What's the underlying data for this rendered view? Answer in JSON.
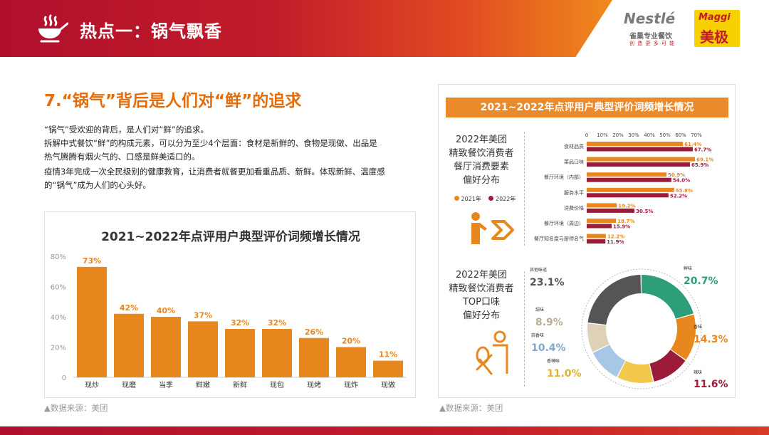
{
  "header": {
    "title": "热点一：锅气飘香",
    "nestle_logo": "Nestlé",
    "nestle_sub": "雀巢专业餐饮",
    "nestle_slogan": "创 造 更 多 可 能",
    "maggi_logo": "Maggi",
    "maggi_cn": "美极",
    "colors": {
      "banner_start": "#b0102c",
      "banner_end": "#f08a1c"
    }
  },
  "heading": "7.“锅气”背后是人们对“鲜”的追求",
  "paragraphs": [
    "“锅气”受欢迎的背后，是人们对“鲜”的追求。",
    "拆解中式餐饮“鲜”的构成元素，可以分为至少4个层面：食材是新鲜的、食物是现做、出品是",
    "热气腾腾有烟火气的、口感是鲜美适口的。",
    "疫情3年完成一次全民级别的健康教育，让消费者就餐更加看重品质、新鲜。体现新鲜、温度感",
    "的“锅气”成为人们的心头好。"
  ],
  "source_left": "▲数据来源：美团",
  "source_right": "▲数据来源：美团",
  "chart_data": [
    {
      "type": "bar",
      "title": "2021~2022年点评用户典型评价词频增长情况",
      "categories": [
        "现炒",
        "现磨",
        "当季",
        "鲜嫩",
        "新鲜",
        "现包",
        "现烤",
        "现炸",
        "现做"
      ],
      "values": [
        73,
        42,
        40,
        37,
        32,
        32,
        26,
        20,
        11
      ],
      "value_labels": [
        "73%",
        "42%",
        "40%",
        "37%",
        "32%",
        "32%",
        "26%",
        "20%",
        "11%"
      ],
      "yticks": [
        "0",
        "20%",
        "40%",
        "60%",
        "80%"
      ],
      "ylim": [
        0,
        80
      ],
      "color": "#e8871e"
    },
    {
      "type": "bar",
      "orientation": "horizontal",
      "categories": [
        "食材品质",
        "菜品口味",
        "餐厅环境（内部）",
        "服务水平",
        "消费价格",
        "餐厅环境（周边）",
        "餐厅知名度与厨师名气"
      ],
      "series": [
        {
          "name": "2021年",
          "values": [
            61.4,
            69.1,
            50.9,
            55.8,
            19.2,
            18.7,
            12.2
          ],
          "labels": [
            "61.4%",
            "69.1%",
            "50.9%",
            "55.8%",
            "19.2%",
            "18.7%",
            "12.2%"
          ],
          "color": "#e8871e"
        },
        {
          "name": "2022年",
          "values": [
            67.7,
            65.9,
            54.0,
            52.2,
            30.5,
            15.9,
            11.9
          ],
          "labels": [
            "67.7%",
            "65.9%",
            "54.0%",
            "52.2%",
            "30.5%",
            "15.9%",
            "11.9%"
          ],
          "color": "#9b1c3a"
        }
      ],
      "xticks": [
        "0",
        "10%",
        "20%",
        "30%",
        "40%",
        "50%",
        "60%",
        "70%"
      ],
      "xlim": [
        0,
        70
      ]
    },
    {
      "type": "pie",
      "donut": true,
      "slices": [
        {
          "name": "鲜味",
          "value": 20.7,
          "label": "20.7%",
          "color": "#2e9e7a"
        },
        {
          "name": "香味",
          "value": 14.3,
          "label": "14.3%",
          "color": "#e8871e"
        },
        {
          "name": "辣味",
          "value": 11.6,
          "label": "11.6%",
          "color": "#9b1c3a"
        },
        {
          "name": "香辣味",
          "value": 11.0,
          "label": "11.0%",
          "color": "#f2c94c"
        },
        {
          "name": "蒜香味",
          "value": 10.4,
          "label": "10.4%",
          "color": "#a7c7e7"
        },
        {
          "name": "甜味",
          "value": 8.9,
          "label": "8.9%",
          "color": "#ddd2b8"
        },
        {
          "name": "其他味道",
          "value": 23.1,
          "label": "23.1%",
          "color": "#555555"
        }
      ]
    }
  ],
  "right_panel": {
    "header": "2021~2022年点评用户典型评价词频增长情况",
    "label1": [
      "2022年美团",
      "精致餐饮消费者",
      "餐厅消费要素",
      "偏好分布"
    ],
    "label2": [
      "2022年美团",
      "精致餐饮消费者",
      "TOP口味",
      "偏好分布"
    ],
    "legend": [
      "2021年",
      "2022年"
    ],
    "icons": [
      "presenter-icon",
      "chef-icon"
    ]
  }
}
